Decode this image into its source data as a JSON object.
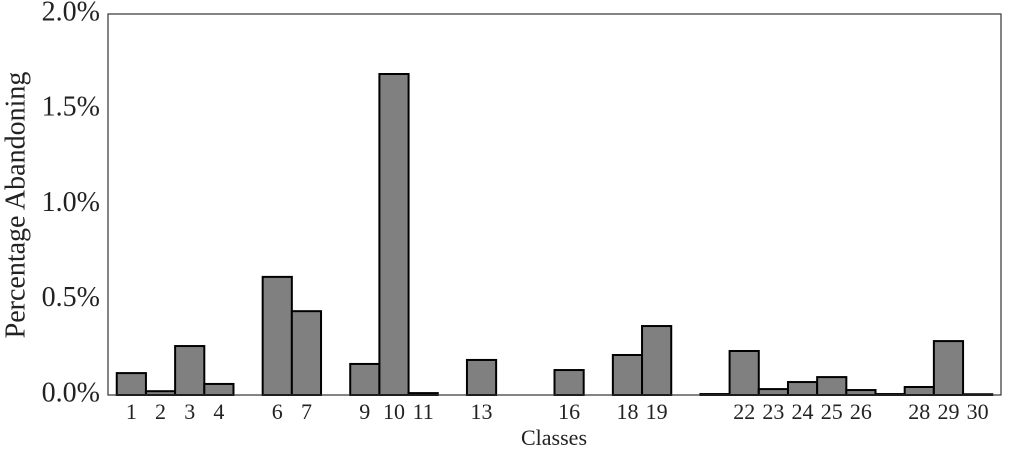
{
  "chart_data": {
    "type": "bar",
    "xlabel": "Classes",
    "ylabel": "Percentage Abandoning",
    "x": [
      1,
      2,
      3,
      4,
      6,
      7,
      9,
      10,
      11,
      13,
      16,
      18,
      19,
      21,
      22,
      23,
      24,
      25,
      26,
      27,
      28,
      29,
      30
    ],
    "values": [
      0.115,
      0.02,
      0.257,
      0.058,
      0.62,
      0.44,
      0.163,
      1.685,
      0.01,
      0.184,
      0.131,
      0.21,
      0.362,
      0.005,
      0.231,
      0.031,
      0.068,
      0.094,
      0.026,
      0.005,
      0.042,
      0.283,
      0.004
    ],
    "color": "#808080",
    "edgecolor": "#000000",
    "xlim": [
      0.2,
      30.8
    ],
    "xticks": [
      1,
      2,
      3,
      4,
      6,
      7,
      9,
      10,
      11,
      13,
      16,
      18,
      19,
      22,
      23,
      24,
      25,
      26,
      28,
      29,
      30
    ],
    "ylim": [
      0,
      2.0
    ],
    "yticks": [
      {
        "value": 0,
        "label": "0.0%"
      },
      {
        "value": 0.5,
        "label": "0.5%"
      },
      {
        "value": 1.0,
        "label": "1.0%"
      },
      {
        "value": 1.5,
        "label": "1.5%"
      },
      {
        "value": 2.0,
        "label": "2.0%"
      }
    ],
    "grid": false
  }
}
